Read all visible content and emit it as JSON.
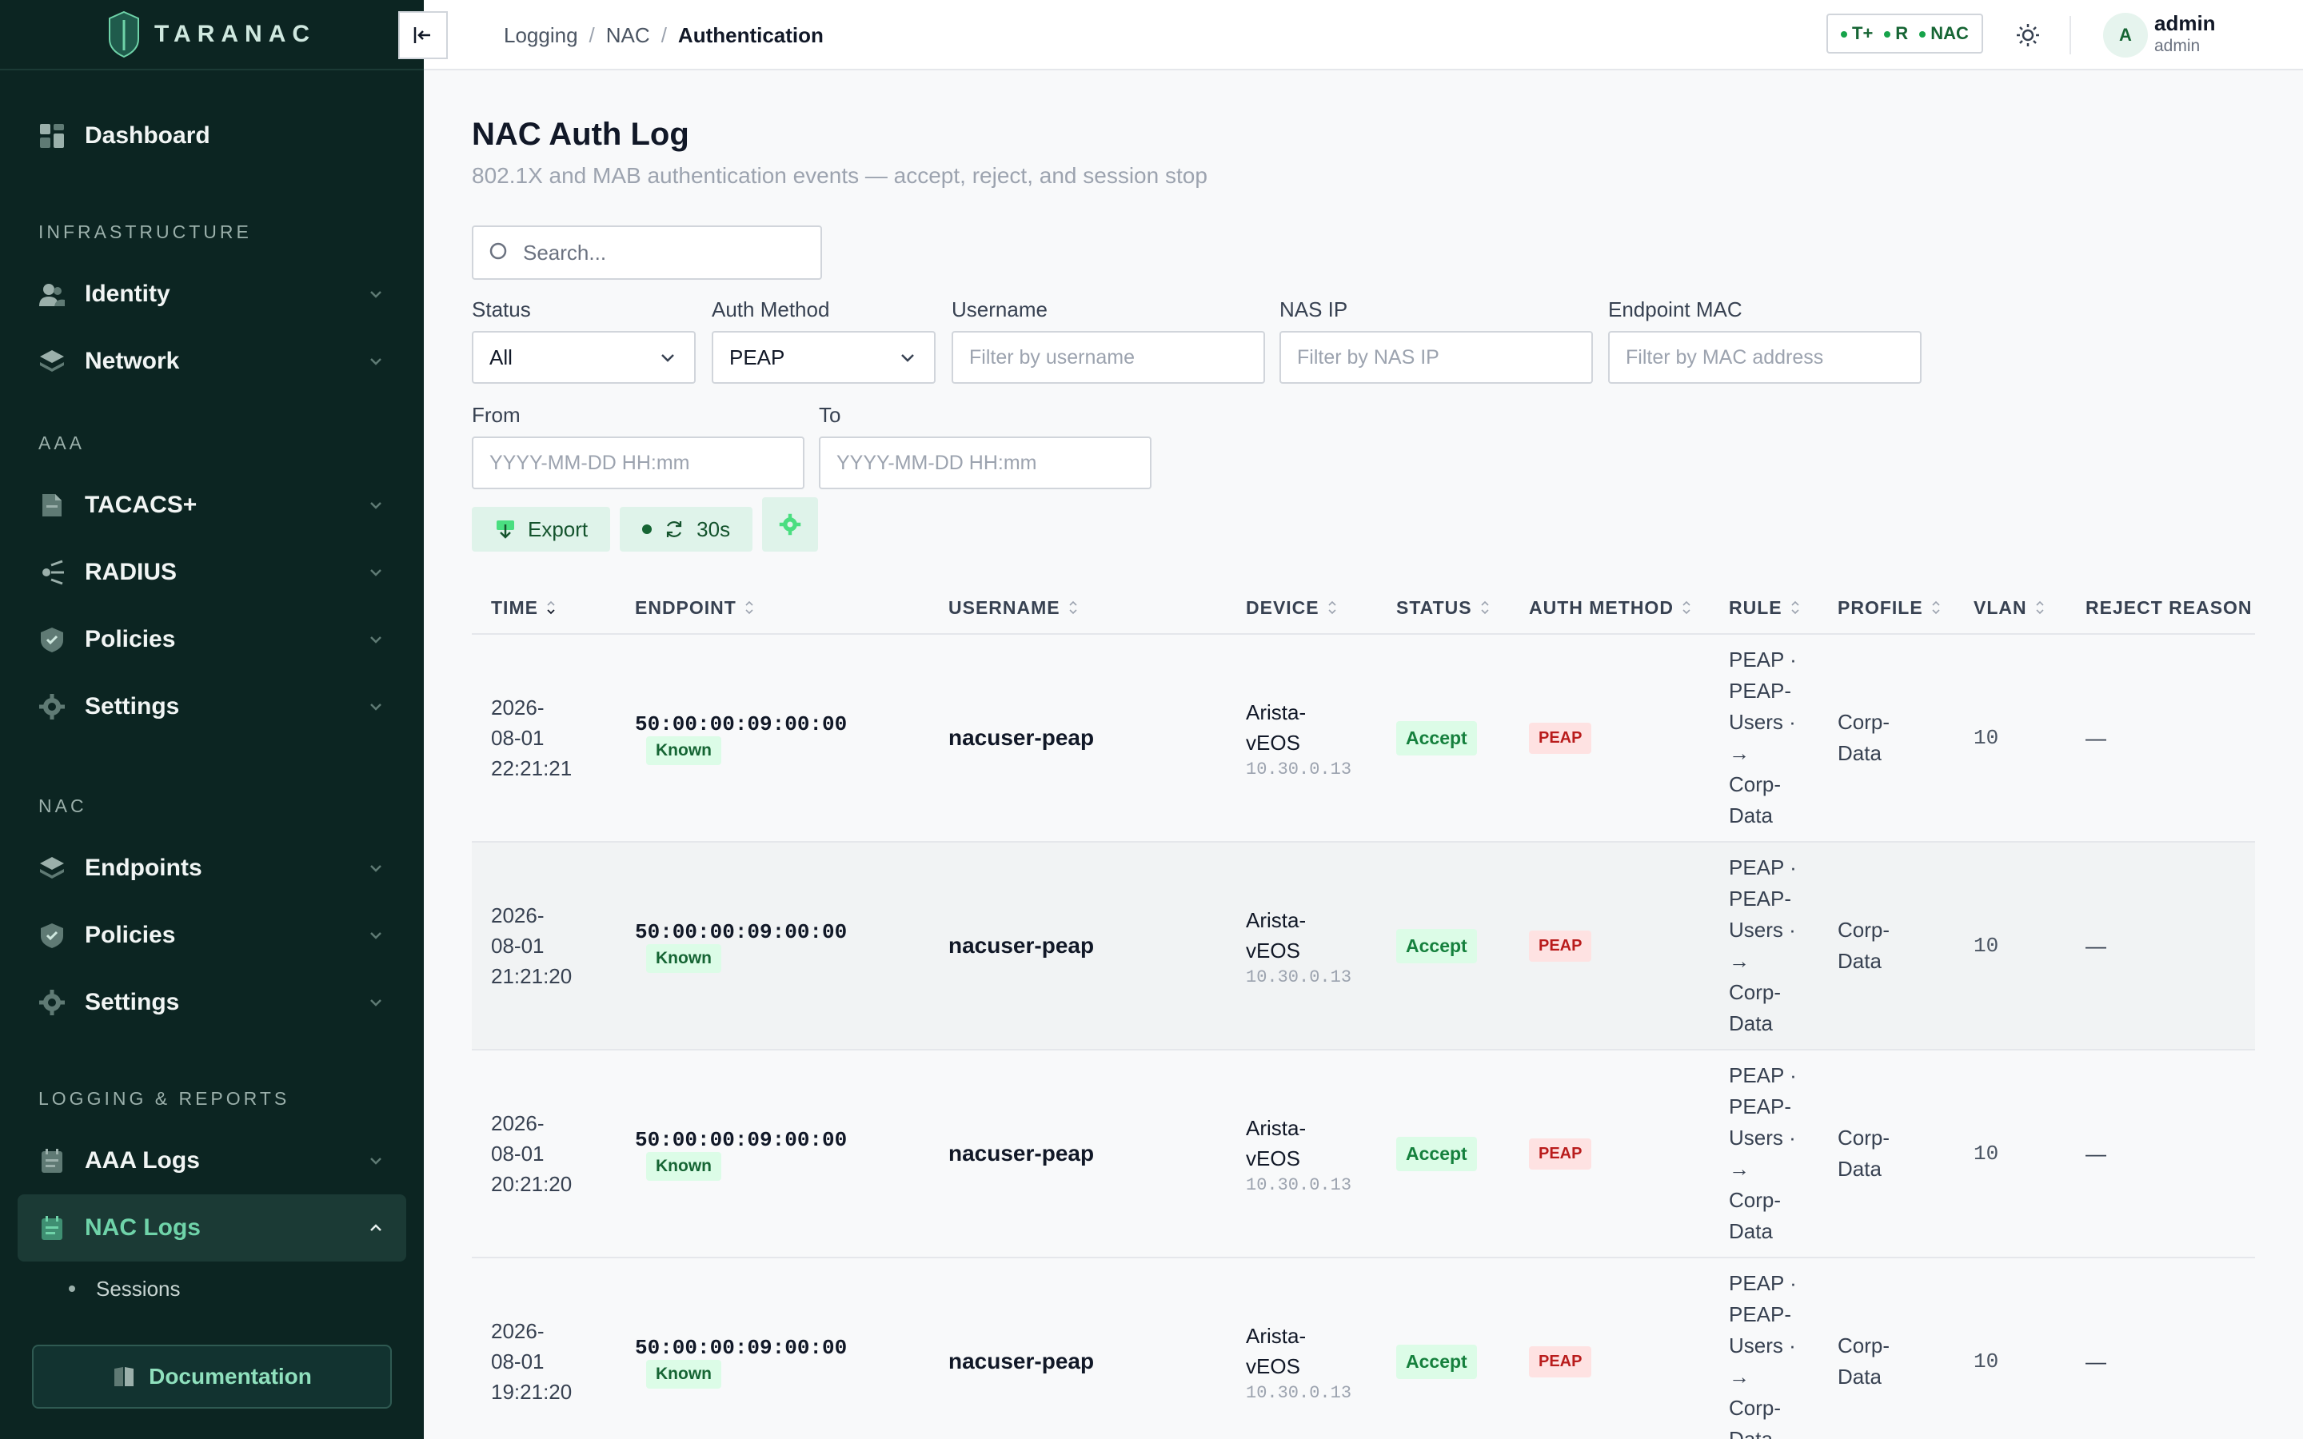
{
  "brand": {
    "name": "TARANAC"
  },
  "sidebar": {
    "dashboard": "Dashboard",
    "sections": {
      "infrastructure": "INFRASTRUCTURE",
      "aaa": "AAA",
      "nac": "NAC",
      "logging": "LOGGING & REPORTS"
    },
    "infrastructure_items": [
      {
        "label": "Identity"
      },
      {
        "label": "Network"
      }
    ],
    "aaa_items": [
      {
        "label": "TACACS+"
      },
      {
        "label": "RADIUS"
      },
      {
        "label": "Policies"
      },
      {
        "label": "Settings"
      }
    ],
    "nac_items": [
      {
        "label": "Endpoints"
      },
      {
        "label": "Policies"
      },
      {
        "label": "Settings"
      }
    ],
    "logging_items": [
      {
        "label": "AAA Logs"
      },
      {
        "label": "NAC Logs"
      }
    ],
    "nac_logs_sub": [
      {
        "label": "Sessions"
      }
    ],
    "documentation": "Documentation"
  },
  "topbar": {
    "breadcrumb": [
      "Logging",
      "NAC",
      "Authentication"
    ],
    "separator": "/",
    "protocols": [
      "T+",
      "R",
      "NAC"
    ],
    "user": {
      "initial": "A",
      "name": "admin",
      "role": "admin"
    }
  },
  "page": {
    "title": "NAC Auth Log",
    "subtitle": "802.1X and MAB authentication events — accept, reject, and session stop"
  },
  "filters": {
    "search_placeholder": "Search...",
    "status": {
      "label": "Status",
      "value": "All"
    },
    "auth_method": {
      "label": "Auth Method",
      "value": "PEAP"
    },
    "username": {
      "label": "Username",
      "placeholder": "Filter by username"
    },
    "nas_ip": {
      "label": "NAS IP",
      "placeholder": "Filter by NAS IP"
    },
    "endpoint_mac": {
      "label": "Endpoint MAC",
      "placeholder": "Filter by MAC address"
    },
    "from": {
      "label": "From",
      "placeholder": "YYYY-MM-DD HH:mm"
    },
    "to": {
      "label": "To",
      "placeholder": "YYYY-MM-DD HH:mm"
    }
  },
  "toolbar": {
    "export": "Export",
    "refresh_interval": "30s"
  },
  "table": {
    "columns": [
      "TIME",
      "ENDPOINT",
      "USERNAME",
      "DEVICE",
      "STATUS",
      "AUTH METHOD",
      "RULE",
      "PROFILE",
      "VLAN",
      "REJECT REASON"
    ],
    "rows": [
      {
        "date": "2026-",
        "date2": "08-01",
        "clock": "22:21:21",
        "mac": "50:00:00:09:00:00",
        "badge": "Known",
        "username": "nacuser-peap",
        "device1": "Arista-",
        "device2": "vEOS",
        "device_ip": "10.30.0.13",
        "status": "Accept",
        "auth": "PEAP",
        "rule": [
          "PEAP ·",
          "PEAP-",
          "Users ·",
          "→",
          "Corp-",
          "Data"
        ],
        "profile": [
          "Corp-",
          "Data"
        ],
        "vlan": "10",
        "reason": "—"
      },
      {
        "date": "2026-",
        "date2": "08-01",
        "clock": "21:21:20",
        "mac": "50:00:00:09:00:00",
        "badge": "Known",
        "username": "nacuser-peap",
        "device1": "Arista-",
        "device2": "vEOS",
        "device_ip": "10.30.0.13",
        "status": "Accept",
        "auth": "PEAP",
        "rule": [
          "PEAP ·",
          "PEAP-",
          "Users ·",
          "→",
          "Corp-",
          "Data"
        ],
        "profile": [
          "Corp-",
          "Data"
        ],
        "vlan": "10",
        "reason": "—"
      },
      {
        "date": "2026-",
        "date2": "08-01",
        "clock": "20:21:20",
        "mac": "50:00:00:09:00:00",
        "badge": "Known",
        "username": "nacuser-peap",
        "device1": "Arista-",
        "device2": "vEOS",
        "device_ip": "10.30.0.13",
        "status": "Accept",
        "auth": "PEAP",
        "rule": [
          "PEAP ·",
          "PEAP-",
          "Users ·",
          "→",
          "Corp-",
          "Data"
        ],
        "profile": [
          "Corp-",
          "Data"
        ],
        "vlan": "10",
        "reason": "—"
      },
      {
        "date": "2026-",
        "date2": "08-01",
        "clock": "19:21:20",
        "mac": "50:00:00:09:00:00",
        "badge": "Known",
        "username": "nacuser-peap",
        "device1": "Arista-",
        "device2": "vEOS",
        "device_ip": "10.30.0.13",
        "status": "Accept",
        "auth": "PEAP",
        "rule": [
          "PEAP ·",
          "PEAP-",
          "Users ·",
          "→",
          "Corp-",
          "Data"
        ],
        "profile": [
          "Corp-",
          "Data"
        ],
        "vlan": "10",
        "reason": "—"
      }
    ]
  },
  "colors": {
    "sidebar_bg": "#0c2522",
    "accent": "#6fd3a9",
    "accept_bg": "#dcfce7",
    "peap_bg": "#fee2e2"
  }
}
